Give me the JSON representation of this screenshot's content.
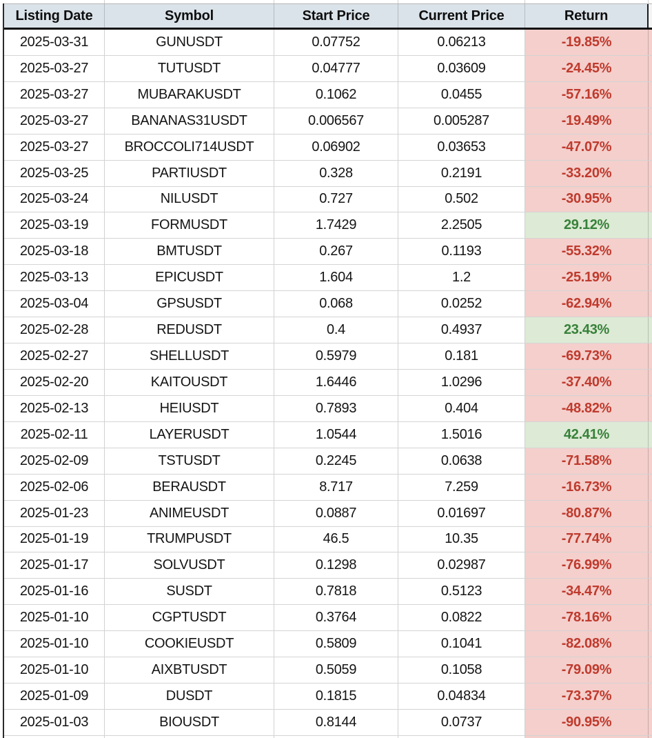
{
  "table": {
    "headers": [
      "Listing Date",
      "Symbol",
      "Start Price",
      "Current Price",
      "Return"
    ],
    "rows": [
      {
        "date": "2025-03-31",
        "symbol": "GUNUSDT",
        "start": "0.07752",
        "current": "0.06213",
        "return": "-19.85%",
        "dir": "down"
      },
      {
        "date": "2025-03-27",
        "symbol": "TUTUSDT",
        "start": "0.04777",
        "current": "0.03609",
        "return": "-24.45%",
        "dir": "down"
      },
      {
        "date": "2025-03-27",
        "symbol": "MUBARAKUSDT",
        "start": "0.1062",
        "current": "0.0455",
        "return": "-57.16%",
        "dir": "down"
      },
      {
        "date": "2025-03-27",
        "symbol": "BANANAS31USDT",
        "start": "0.006567",
        "current": "0.005287",
        "return": "-19.49%",
        "dir": "down"
      },
      {
        "date": "2025-03-27",
        "symbol": "BROCCOLI714USDT",
        "start": "0.06902",
        "current": "0.03653",
        "return": "-47.07%",
        "dir": "down"
      },
      {
        "date": "2025-03-25",
        "symbol": "PARTIUSDT",
        "start": "0.328",
        "current": "0.2191",
        "return": "-33.20%",
        "dir": "down"
      },
      {
        "date": "2025-03-24",
        "symbol": "NILUSDT",
        "start": "0.727",
        "current": "0.502",
        "return": "-30.95%",
        "dir": "down"
      },
      {
        "date": "2025-03-19",
        "symbol": "FORMUSDT",
        "start": "1.7429",
        "current": "2.2505",
        "return": "29.12%",
        "dir": "up"
      },
      {
        "date": "2025-03-18",
        "symbol": "BMTUSDT",
        "start": "0.267",
        "current": "0.1193",
        "return": "-55.32%",
        "dir": "down"
      },
      {
        "date": "2025-03-13",
        "symbol": "EPICUSDT",
        "start": "1.604",
        "current": "1.2",
        "return": "-25.19%",
        "dir": "down"
      },
      {
        "date": "2025-03-04",
        "symbol": "GPSUSDT",
        "start": "0.068",
        "current": "0.0252",
        "return": "-62.94%",
        "dir": "down"
      },
      {
        "date": "2025-02-28",
        "symbol": "REDUSDT",
        "start": "0.4",
        "current": "0.4937",
        "return": "23.43%",
        "dir": "up"
      },
      {
        "date": "2025-02-27",
        "symbol": "SHELLUSDT",
        "start": "0.5979",
        "current": "0.181",
        "return": "-69.73%",
        "dir": "down"
      },
      {
        "date": "2025-02-20",
        "symbol": "KAITOUSDT",
        "start": "1.6446",
        "current": "1.0296",
        "return": "-37.40%",
        "dir": "down"
      },
      {
        "date": "2025-02-13",
        "symbol": "HEIUSDT",
        "start": "0.7893",
        "current": "0.404",
        "return": "-48.82%",
        "dir": "down"
      },
      {
        "date": "2025-02-11",
        "symbol": "LAYERUSDT",
        "start": "1.0544",
        "current": "1.5016",
        "return": "42.41%",
        "dir": "up"
      },
      {
        "date": "2025-02-09",
        "symbol": "TSTUSDT",
        "start": "0.2245",
        "current": "0.0638",
        "return": "-71.58%",
        "dir": "down"
      },
      {
        "date": "2025-02-06",
        "symbol": "BERAUSDT",
        "start": "8.717",
        "current": "7.259",
        "return": "-16.73%",
        "dir": "down"
      },
      {
        "date": "2025-01-23",
        "symbol": "ANIMEUSDT",
        "start": "0.0887",
        "current": "0.01697",
        "return": "-80.87%",
        "dir": "down"
      },
      {
        "date": "2025-01-19",
        "symbol": "TRUMPUSDT",
        "start": "46.5",
        "current": "10.35",
        "return": "-77.74%",
        "dir": "down"
      },
      {
        "date": "2025-01-17",
        "symbol": "SOLVUSDT",
        "start": "0.1298",
        "current": "0.02987",
        "return": "-76.99%",
        "dir": "down"
      },
      {
        "date": "2025-01-16",
        "symbol": "SUSDT",
        "start": "0.7818",
        "current": "0.5123",
        "return": "-34.47%",
        "dir": "down"
      },
      {
        "date": "2025-01-10",
        "symbol": "CGPTUSDT",
        "start": "0.3764",
        "current": "0.0822",
        "return": "-78.16%",
        "dir": "down"
      },
      {
        "date": "2025-01-10",
        "symbol": "COOKIEUSDT",
        "start": "0.5809",
        "current": "0.1041",
        "return": "-82.08%",
        "dir": "down"
      },
      {
        "date": "2025-01-10",
        "symbol": "AIXBTUSDT",
        "start": "0.5059",
        "current": "0.1058",
        "return": "-79.09%",
        "dir": "down"
      },
      {
        "date": "2025-01-09",
        "symbol": "DUSDT",
        "start": "0.1815",
        "current": "0.04834",
        "return": "-73.37%",
        "dir": "down"
      },
      {
        "date": "2025-01-03",
        "symbol": "BIOUSDT",
        "start": "0.8144",
        "current": "0.0737",
        "return": "-90.95%",
        "dir": "down"
      }
    ]
  },
  "colors": {
    "header_bg": "#dbe3ea",
    "negative_bg": "#f4cfcc",
    "negative_text": "#bf3a2d",
    "positive_bg": "#ddead5",
    "positive_text": "#37813a",
    "header_border": "#0d0d0d"
  }
}
